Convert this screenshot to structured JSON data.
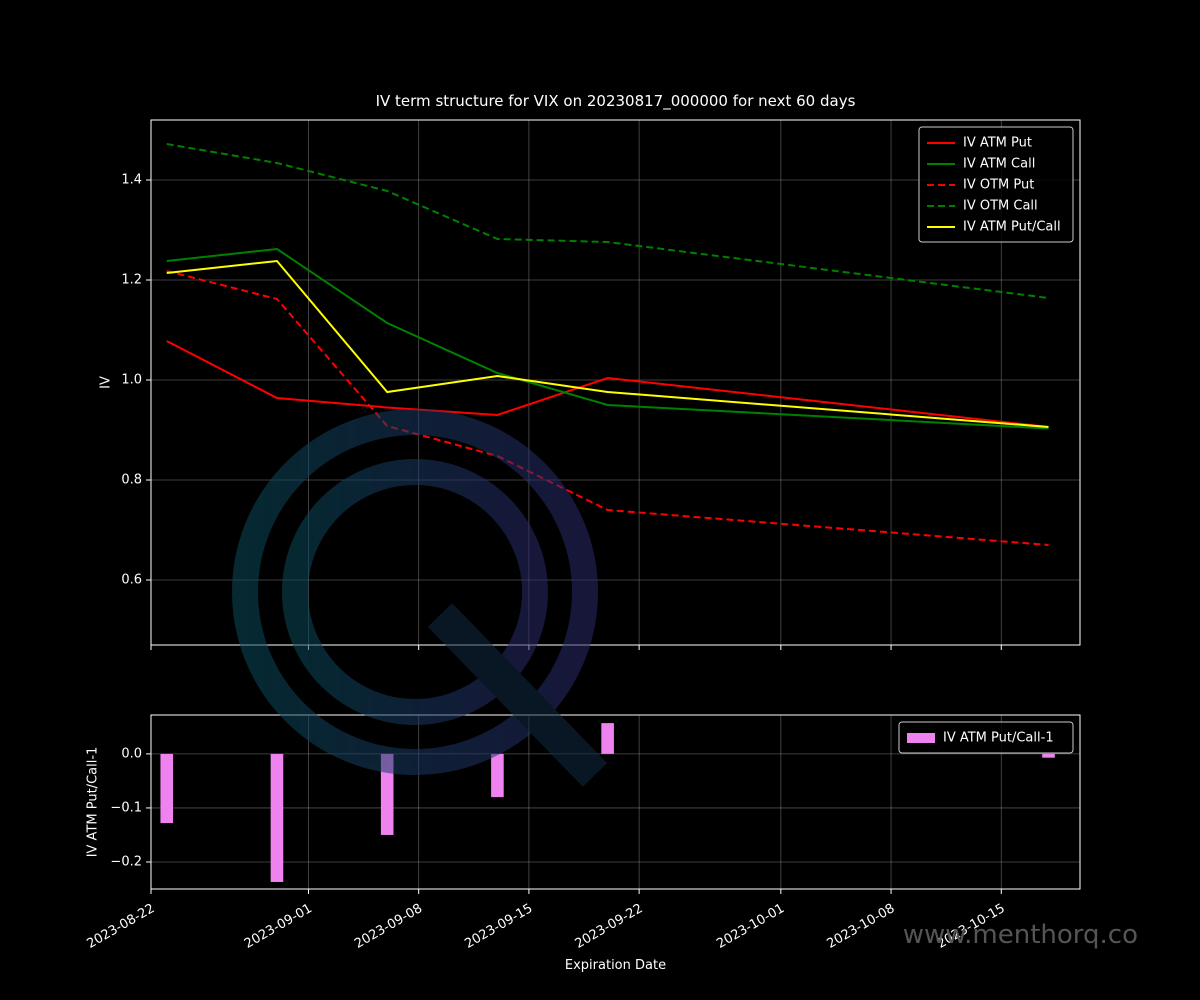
{
  "chart_data": [
    {
      "type": "line",
      "title": "IV term structure for VIX on 20230817_000000 for next 60 days",
      "ylabel": "IV",
      "x": [
        "2023-08-23",
        "2023-08-30",
        "2023-09-06",
        "2023-09-13",
        "2023-09-20",
        "2023-10-18"
      ],
      "xlim": [
        "2023-08-22",
        "2023-10-20"
      ],
      "xticks": [
        "2023-08-22",
        "2023-09-01",
        "2023-09-08",
        "2023-09-15",
        "2023-09-22",
        "2023-10-01",
        "2023-10-08",
        "2023-10-15"
      ],
      "ylim": [
        0.47,
        1.52
      ],
      "yticks": [
        0.6,
        {
          "value": 0.8,
          "label": "0.8"
        },
        {
          "value": 1.0,
          "label": "1.0"
        },
        1.2,
        1.4
      ],
      "grid": true,
      "legend": "upper right",
      "series": [
        {
          "name": "IV ATM Put",
          "color": "#ff0000",
          "dash": false,
          "values": [
            1.078,
            0.964,
            0.945,
            0.93,
            1.004,
            0.906
          ]
        },
        {
          "name": "IV ATM Call",
          "color": "#008000",
          "dash": false,
          "values": [
            1.238,
            1.262,
            1.114,
            1.014,
            0.95,
            0.903
          ]
        },
        {
          "name": "IV OTM Put",
          "color": "#ff0000",
          "dash": true,
          "values": [
            1.218,
            1.162,
            0.908,
            0.848,
            0.74,
            0.67
          ]
        },
        {
          "name": "IV OTM Call",
          "color": "#008000",
          "dash": true,
          "values": [
            1.472,
            1.434,
            1.378,
            1.282,
            1.276,
            1.164
          ]
        },
        {
          "name": "IV ATM Put/Call",
          "color": "#ffff00",
          "dash": false,
          "values": [
            1.214,
            1.238,
            0.976,
            1.008,
            0.976,
            0.906
          ]
        }
      ]
    },
    {
      "type": "bar",
      "ylabel": "IV ATM Put/Call-1",
      "xlabel": "Expiration Date",
      "x": [
        "2023-08-23",
        "2023-08-30",
        "2023-09-06",
        "2023-09-13",
        "2023-09-20",
        "2023-10-18"
      ],
      "xlim": [
        "2023-08-22",
        "2023-10-20"
      ],
      "xticks": [
        "2023-08-22",
        "2023-09-01",
        "2023-09-08",
        "2023-09-15",
        "2023-09-22",
        "2023-10-01",
        "2023-10-08",
        "2023-10-15"
      ],
      "ylim": [
        -0.25,
        0.072
      ],
      "yticks": [
        {
          "value": -0.2,
          "label": "−0.2"
        },
        {
          "value": -0.1,
          "label": "−0.1"
        },
        {
          "value": 0.0,
          "label": "0.0"
        }
      ],
      "grid": true,
      "legend": "upper right",
      "series": [
        {
          "name": "IV ATM Put/Call-1",
          "color": "#ee82ee",
          "values": [
            -0.128,
            -0.237,
            -0.15,
            -0.08,
            0.057,
            -0.007
          ]
        }
      ]
    }
  ],
  "watermark": "www.menthorq.co"
}
